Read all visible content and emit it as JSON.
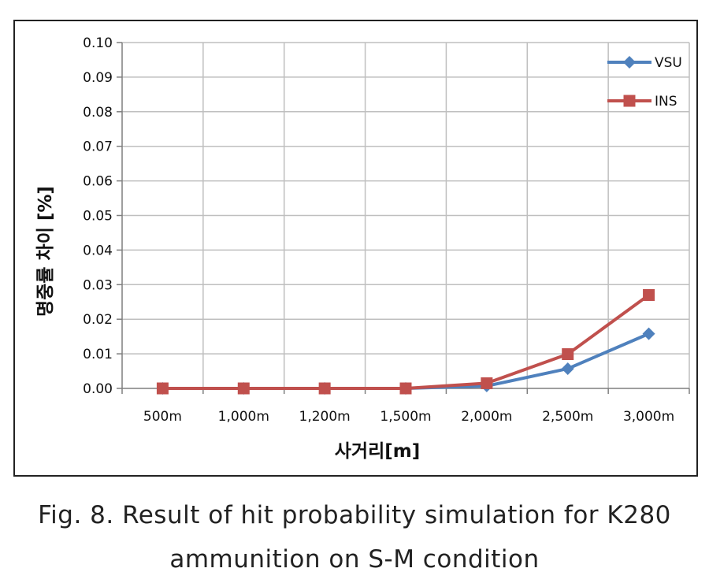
{
  "chart_data": {
    "type": "line",
    "title": "",
    "xlabel": "사거리[m]",
    "ylabel": "명중률 차이 [%]",
    "categories": [
      "500m",
      "1,000m",
      "1,200m",
      "1,500m",
      "2,000m",
      "2,500m",
      "3,000m"
    ],
    "ylim": [
      0,
      0.1
    ],
    "yticks": [
      "0.00",
      "0.01",
      "0.02",
      "0.03",
      "0.04",
      "0.05",
      "0.06",
      "0.07",
      "0.08",
      "0.09",
      "0.10"
    ],
    "grid": true,
    "legend_position": "top-right",
    "series": [
      {
        "name": "VSU",
        "color": "#4f81bd",
        "marker": "diamond",
        "values": [
          0.0,
          0.0,
          0.0,
          0.0,
          0.0007,
          0.0057,
          0.0158
        ]
      },
      {
        "name": "INS",
        "color": "#c0504d",
        "marker": "square",
        "values": [
          0.0,
          0.0,
          0.0,
          0.0,
          0.0015,
          0.0099,
          0.027
        ]
      }
    ]
  },
  "caption": {
    "line1": "Fig. 8. Result of hit probability simulation for K280",
    "line2": "ammunition on S-M condition"
  }
}
